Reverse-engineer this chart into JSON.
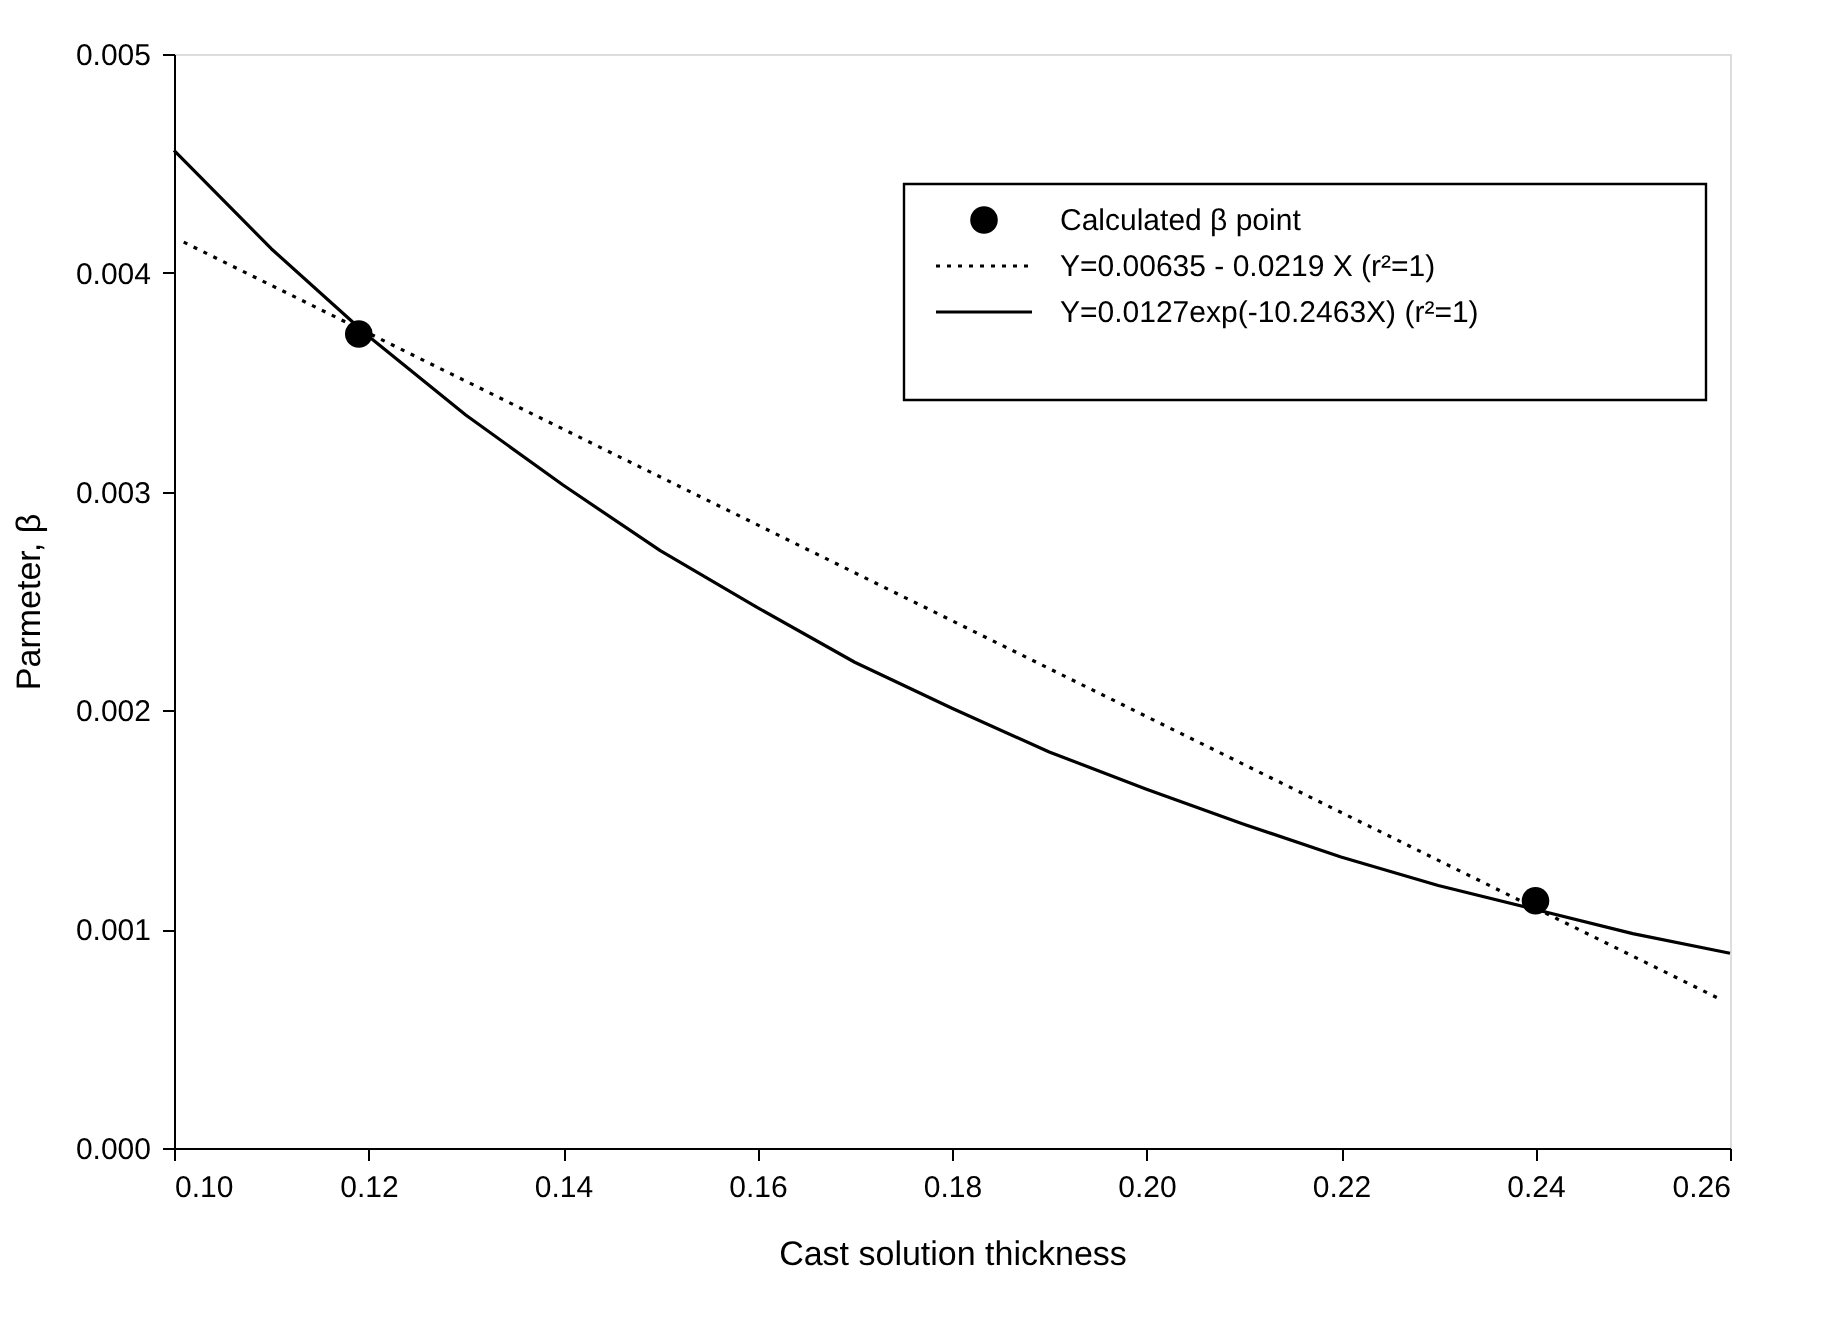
{
  "chart_data": {
    "type": "line",
    "xlabel": "Cast solution thickness",
    "ylabel": "Parmeter, β",
    "xlim": [
      0.1,
      0.26
    ],
    "ylim": [
      0,
      0.005
    ],
    "xticks": [
      {
        "value": 0.1,
        "label": "0.10"
      },
      {
        "value": 0.12,
        "label": "0.12"
      },
      {
        "value": 0.14,
        "label": "0.14"
      },
      {
        "value": 0.16,
        "label": "0.16"
      },
      {
        "value": 0.18,
        "label": "0.18"
      },
      {
        "value": 0.2,
        "label": "0.20"
      },
      {
        "value": 0.22,
        "label": "0.22"
      },
      {
        "value": 0.24,
        "label": "0.24"
      },
      {
        "value": 0.26,
        "label": "0.26"
      }
    ],
    "yticks": [
      {
        "value": 0,
        "label": "0.000"
      },
      {
        "value": 0.001,
        "label": "0.001"
      },
      {
        "value": 0.002,
        "label": "0.002"
      },
      {
        "value": 0.003,
        "label": "0.003"
      },
      {
        "value": 0.004,
        "label": "0.004"
      },
      {
        "value": 0.005,
        "label": "0.005"
      }
    ],
    "grid": false,
    "legend": "top right",
    "series": [
      {
        "name": "Calculated β point",
        "type": "scatter",
        "marker": "circle",
        "color": "#000000",
        "x": [
          0.119,
          0.24
        ],
        "values": [
          0.00372,
          0.00113
        ]
      },
      {
        "name": "Y=0.00635 - 0.0219 X (r²=1)",
        "line_style": "dotted",
        "color": "#000000",
        "x": [
          0.101,
          0.259
        ],
        "values": [
          0.00414,
          0.00068
        ]
      },
      {
        "name": "Y=0.0127exp(-10.2463X) (r²=1)",
        "line_style": "solid",
        "color": "#000000",
        "x": [
          0.1,
          0.11,
          0.12,
          0.13,
          0.14,
          0.15,
          0.16,
          0.17,
          0.18,
          0.19,
          0.2,
          0.21,
          0.22,
          0.23,
          0.24,
          0.25,
          0.26
        ],
        "values": [
          0.00456,
          0.00411,
          0.00371,
          0.00335,
          0.00303,
          0.00273,
          0.00247,
          0.00222,
          0.00201,
          0.00181,
          0.00164,
          0.00148,
          0.00133,
          0.0012,
          0.00109,
          0.00098,
          0.00089
        ]
      }
    ]
  }
}
